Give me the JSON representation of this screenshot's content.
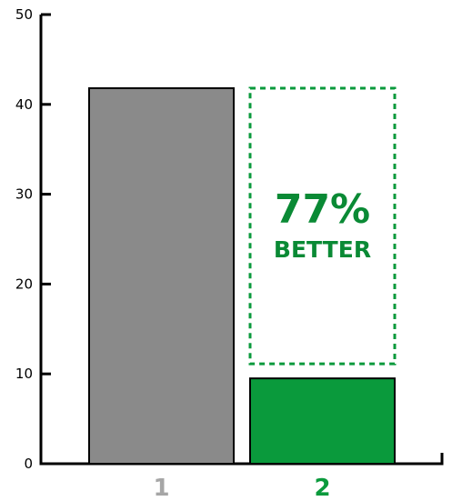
{
  "chart_data": {
    "type": "bar",
    "categories": [
      "1",
      "2"
    ],
    "values": [
      41.8,
      9.5
    ],
    "target_outline_value": 41.8,
    "ylim": [
      0,
      50
    ],
    "yticks": [
      0,
      10,
      20,
      30,
      40,
      50
    ],
    "title": "",
    "xlabel": "",
    "ylabel": "",
    "grid": false,
    "annotation": {
      "percent": "77%",
      "word": "BETTER"
    },
    "colors": {
      "bar_1": "#8a8a8a",
      "bar_2": "#0a9a3c",
      "cat_label_1": "#a6a6a6",
      "cat_label_2": "#0a9a3c",
      "annotation": "#0a8a35",
      "outline": "#0a9a3c",
      "axis": "#000000"
    }
  }
}
